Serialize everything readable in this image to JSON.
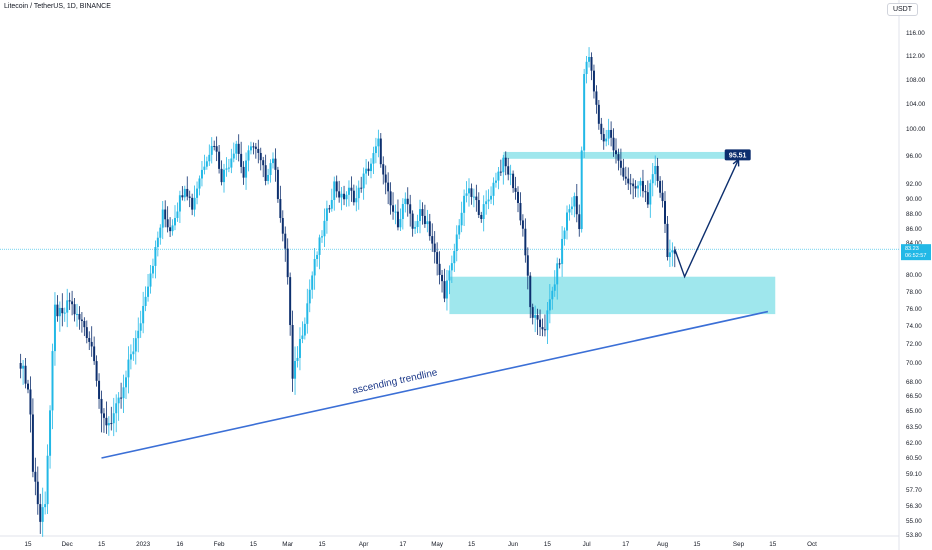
{
  "header": {
    "title": "Litecoin / TetherUS, 1D, BINANCE"
  },
  "currency_button": "USDT",
  "annotations": {
    "trendline_label": "ascending trendline",
    "target_label": "95.51",
    "price_label": "83.23",
    "countdown_label": "06:52:57"
  },
  "colors": {
    "up": "#22b8e6",
    "down": "#0d2f6e",
    "zone": "#8ee3ea",
    "trendline": "#3b6fd6",
    "target_bg": "#0d2f6e",
    "price_tag": "#22b8e6"
  },
  "chart_data": {
    "type": "candlestick",
    "symbol": "Litecoin / TetherUS",
    "interval": "1D",
    "exchange": "BINANCE",
    "y_ticks": [
      116.0,
      112.0,
      108.0,
      104.0,
      100.0,
      96.0,
      92.0,
      90.0,
      88.0,
      86.0,
      84.0,
      80.0,
      78.0,
      76.0,
      74.0,
      72.0,
      70.0,
      68.0,
      66.5,
      65.0,
      63.5,
      62.0,
      60.5,
      59.1,
      57.7,
      56.3,
      55.0,
      53.8
    ],
    "y_tick_labels": [
      "116.00",
      "112.00",
      "108.00",
      "104.00",
      "100.00",
      "96.00",
      "92.00",
      "90.00",
      "88.00",
      "86.00",
      "84.00",
      "80.00",
      "78.00",
      "76.00",
      "74.00",
      "72.00",
      "70.00",
      "68.00",
      "66.50",
      "65.00",
      "63.50",
      "62.00",
      "60.50",
      "59.10",
      "57.70",
      "56.30",
      "55.00",
      "53.80"
    ],
    "x_ticks": [
      {
        "label": "15",
        "day": 0
      },
      {
        "label": "Dec",
        "day": 16
      },
      {
        "label": "15",
        "day": 30
      },
      {
        "label": "2023",
        "day": 47
      },
      {
        "label": "16",
        "day": 62
      },
      {
        "label": "Feb",
        "day": 78
      },
      {
        "label": "15",
        "day": 92
      },
      {
        "label": "Mar",
        "day": 106
      },
      {
        "label": "15",
        "day": 120
      },
      {
        "label": "Apr",
        "day": 137
      },
      {
        "label": "17",
        "day": 153
      },
      {
        "label": "May",
        "day": 167
      },
      {
        "label": "15",
        "day": 181
      },
      {
        "label": "Jun",
        "day": 198
      },
      {
        "label": "15",
        "day": 212
      },
      {
        "label": "Jul",
        "day": 228
      },
      {
        "label": "17",
        "day": 244
      },
      {
        "label": "Aug",
        "day": 259
      },
      {
        "label": "15",
        "day": 273
      },
      {
        "label": "Sep",
        "day": 290
      },
      {
        "label": "15",
        "day": 304
      },
      {
        "label": "Oct",
        "day": 320
      }
    ],
    "x_range_days": [
      -4,
      335
    ],
    "anchors": [
      [
        -4,
        70
      ],
      [
        0,
        68
      ],
      [
        2,
        60
      ],
      [
        5,
        55
      ],
      [
        7,
        57
      ],
      [
        9,
        65
      ],
      [
        11,
        76
      ],
      [
        14,
        75
      ],
      [
        17,
        77
      ],
      [
        20,
        75
      ],
      [
        23,
        74
      ],
      [
        27,
        71
      ],
      [
        30,
        64
      ],
      [
        33,
        64
      ],
      [
        36,
        65
      ],
      [
        39,
        67
      ],
      [
        42,
        71
      ],
      [
        45,
        73
      ],
      [
        48,
        78
      ],
      [
        52,
        83
      ],
      [
        55,
        88
      ],
      [
        58,
        86
      ],
      [
        61,
        89
      ],
      [
        64,
        92
      ],
      [
        67,
        89
      ],
      [
        70,
        93
      ],
      [
        73,
        96
      ],
      [
        76,
        98
      ],
      [
        79,
        93
      ],
      [
        82,
        95
      ],
      [
        85,
        98
      ],
      [
        88,
        93
      ],
      [
        91,
        98
      ],
      [
        94,
        96
      ],
      [
        97,
        93
      ],
      [
        100,
        96
      ],
      [
        103,
        88
      ],
      [
        106,
        80
      ],
      [
        108,
        68
      ],
      [
        110,
        71
      ],
      [
        113,
        75
      ],
      [
        116,
        80
      ],
      [
        119,
        84
      ],
      [
        122,
        88
      ],
      [
        125,
        92
      ],
      [
        128,
        90
      ],
      [
        131,
        91
      ],
      [
        134,
        90
      ],
      [
        137,
        93
      ],
      [
        140,
        95
      ],
      [
        143,
        98
      ],
      [
        145,
        93
      ],
      [
        148,
        89
      ],
      [
        151,
        87
      ],
      [
        154,
        90
      ],
      [
        157,
        86
      ],
      [
        160,
        88
      ],
      [
        163,
        87
      ],
      [
        167,
        81
      ],
      [
        170,
        78
      ],
      [
        173,
        81
      ],
      [
        176,
        87
      ],
      [
        179,
        91
      ],
      [
        182,
        90
      ],
      [
        185,
        88
      ],
      [
        188,
        90
      ],
      [
        191,
        93
      ],
      [
        194,
        95
      ],
      [
        197,
        93
      ],
      [
        199,
        91
      ],
      [
        202,
        86
      ],
      [
        205,
        76
      ],
      [
        208,
        74
      ],
      [
        211,
        74
      ],
      [
        214,
        78
      ],
      [
        217,
        82
      ],
      [
        220,
        88
      ],
      [
        223,
        90
      ],
      [
        225,
        86
      ],
      [
        227,
        109
      ],
      [
        229,
        112
      ],
      [
        231,
        106
      ],
      [
        233,
        101
      ],
      [
        235,
        98
      ],
      [
        237,
        100
      ],
      [
        239,
        97
      ],
      [
        241,
        95
      ],
      [
        244,
        93
      ],
      [
        247,
        91
      ],
      [
        250,
        92
      ],
      [
        253,
        90
      ],
      [
        256,
        94
      ],
      [
        259,
        90
      ],
      [
        261,
        83
      ],
      [
        264,
        82
      ]
    ],
    "zones": [
      {
        "name": "resistance",
        "x1": 194,
        "x2": 286,
        "y1": 96.6,
        "y2": 95.6
      },
      {
        "name": "support",
        "x1": 172,
        "x2": 305,
        "y1": 79.8,
        "y2": 75.4
      }
    ],
    "trendline": {
      "x1": 30,
      "y1": 60.5,
      "x2": 302,
      "y2": 75.7
    },
    "projection": [
      [
        264,
        83.23
      ],
      [
        268,
        79.8
      ],
      [
        290,
        95.51
      ]
    ],
    "last_price": 83.23,
    "target_price": 95.51
  }
}
